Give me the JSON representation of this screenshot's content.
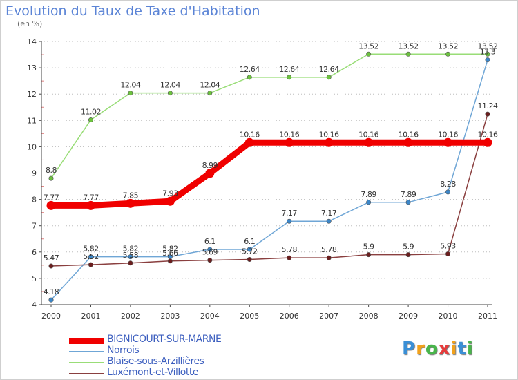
{
  "title": "Evolution du Taux de Taxe d'Habitation",
  "subtitle": "(en %)",
  "logo": {
    "letters": [
      {
        "ch": "P",
        "color": "#3a8fd6"
      },
      {
        "ch": "r",
        "color": "#f2a21c"
      },
      {
        "ch": "o",
        "color": "#49b54b"
      },
      {
        "ch": "x",
        "color": "#e63b3b"
      },
      {
        "ch": "i",
        "color": "#f2a21c"
      },
      {
        "ch": "t",
        "color": "#3a8fd6"
      },
      {
        "ch": "i",
        "color": "#49b54b"
      }
    ]
  },
  "chart_data": {
    "type": "line",
    "x": [
      "2000",
      "2001",
      "2002",
      "2003",
      "2004",
      "2005",
      "2006",
      "2007",
      "2008",
      "2009",
      "2010",
      "2011"
    ],
    "ylim": [
      4,
      14
    ],
    "yticks": [
      4,
      5,
      6,
      7,
      8,
      9,
      10,
      11,
      12,
      13,
      14
    ],
    "grid": "horizontal-dotted",
    "legend_position": "bottom-left",
    "series": [
      {
        "name": "BIGNICOURT-SUR-MARNE",
        "color": "#f00000",
        "width": 9,
        "values": [
          7.77,
          7.77,
          7.85,
          7.93,
          8.99,
          10.16,
          10.16,
          10.16,
          10.16,
          10.16,
          10.16,
          10.16
        ],
        "labels": [
          "7.77",
          "7.77",
          "7.85",
          "7.93",
          "8.99",
          "10.16",
          "10.16",
          "10.16",
          "10.16",
          "10.16",
          "10.16",
          "10.16"
        ]
      },
      {
        "name": "Norrois",
        "color": "#6fa6d6",
        "point_color": "#3b86c8",
        "width": 1.5,
        "values": [
          4.18,
          5.82,
          5.82,
          5.82,
          6.1,
          6.1,
          7.17,
          7.17,
          7.89,
          7.89,
          8.28,
          13.3
        ],
        "labels": [
          "4.18",
          "5.82",
          "5.82",
          "5.82",
          "6.1",
          "6.1",
          "7.17",
          "7.17",
          "7.89",
          "7.89",
          "8.28",
          "13.3"
        ]
      },
      {
        "name": "Blaise-sous-Arzillières",
        "color": "#99dd77",
        "point_color": "#6cc23e",
        "width": 1.5,
        "values": [
          8.8,
          11.02,
          12.04,
          12.04,
          12.04,
          12.64,
          12.64,
          12.64,
          13.52,
          13.52,
          13.52,
          13.52
        ],
        "labels": [
          "8.8",
          "11.02",
          "12.04",
          "12.04",
          "12.04",
          "12.64",
          "12.64",
          "12.64",
          "13.52",
          "13.52",
          "13.52",
          "13.52"
        ]
      },
      {
        "name": "Luxémont-et-Villotte",
        "color": "#8a3f3f",
        "point_color": "#6b1e1e",
        "width": 1.5,
        "values": [
          5.47,
          5.52,
          5.58,
          5.66,
          5.69,
          5.72,
          5.78,
          5.78,
          5.9,
          5.9,
          5.93,
          11.24
        ],
        "labels": [
          "5.47",
          "5.52",
          "5.58",
          "5.66",
          "5.69",
          "5.72",
          "5.78",
          "5.78",
          "5.9",
          "5.9",
          "5.93",
          "11.24"
        ]
      }
    ]
  }
}
